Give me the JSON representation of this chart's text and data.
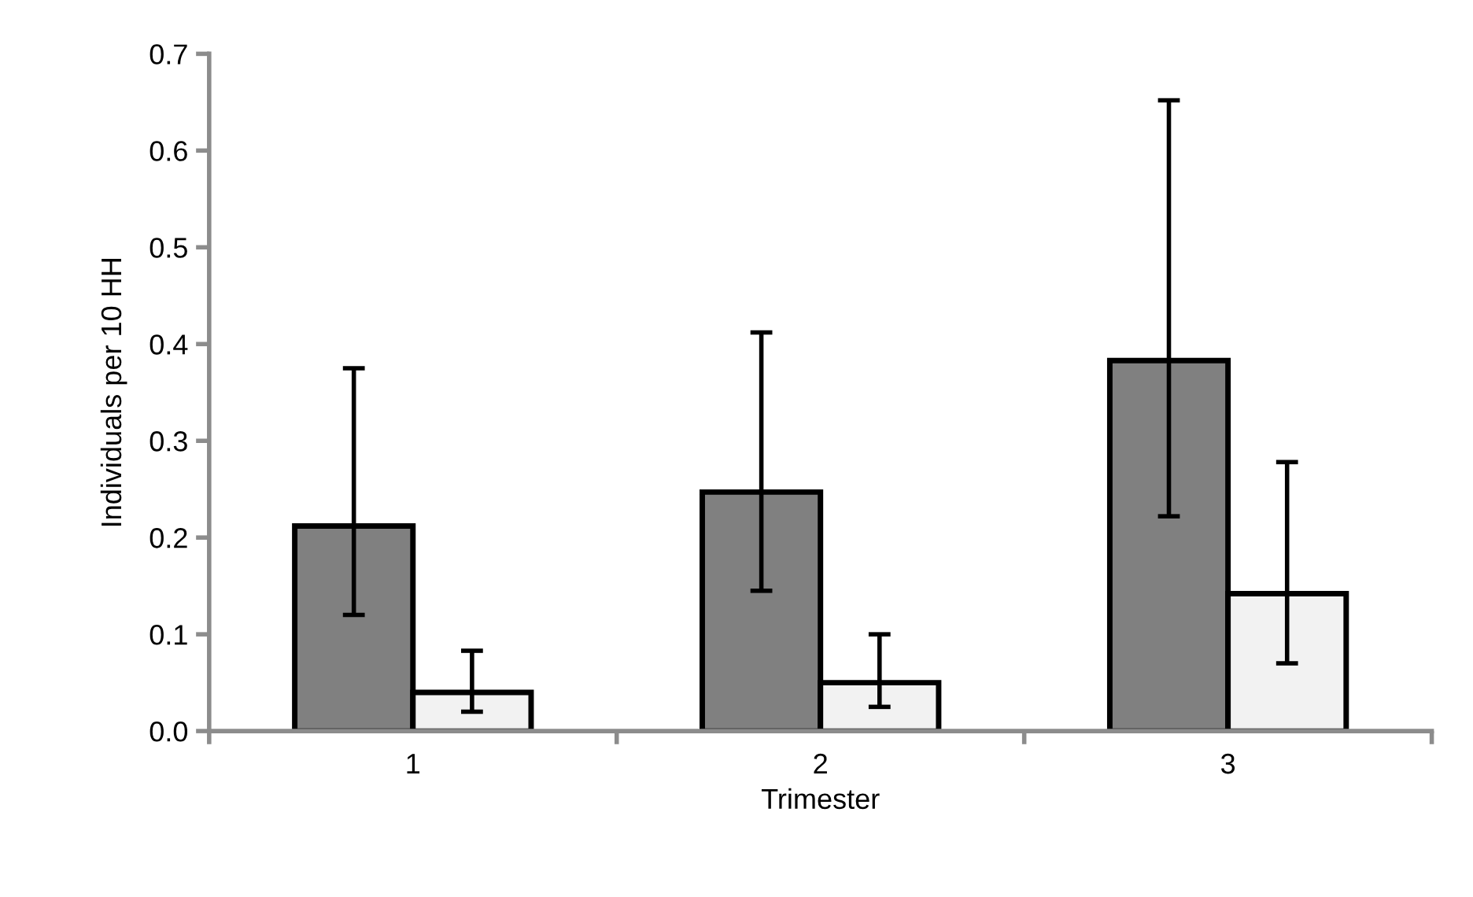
{
  "chart_data": {
    "type": "bar",
    "xlabel": "Trimester",
    "ylabel": "Individuals per 10 HH",
    "categories": [
      "1",
      "2",
      "3"
    ],
    "series": [
      {
        "color": "#808080",
        "values": [
          0.212,
          0.247,
          0.383
        ],
        "errors": [
          [
            0.12,
            0.375
          ],
          [
            0.145,
            0.412
          ],
          [
            0.222,
            0.652
          ]
        ]
      },
      {
        "color": "#f2f2f2",
        "values": [
          0.04,
          0.05,
          0.142
        ],
        "errors": [
          [
            0.02,
            0.083
          ],
          [
            0.025,
            0.1
          ],
          [
            0.07,
            0.278
          ]
        ]
      }
    ],
    "ylim": [
      0,
      0.7
    ],
    "yticks": [
      {
        "value": 0,
        "label": "0.0"
      },
      0.1,
      0.2,
      0.3,
      0.4,
      0.5,
      0.6,
      0.7
    ],
    "grid": false
  }
}
